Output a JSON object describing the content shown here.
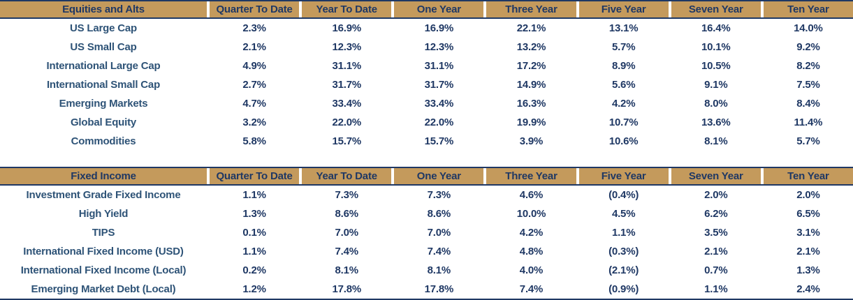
{
  "columns": [
    "Quarter To Date",
    "Year To Date",
    "One Year",
    "Three Year",
    "Five Year",
    "Seven Year",
    "Ten Year"
  ],
  "colors": {
    "header_background": "#c49a5c",
    "header_text": "#1f3864",
    "value_text": "#1f3864",
    "row_label_text": "#2e5377",
    "border": "#1f3864",
    "background": "#ffffff"
  },
  "tables": [
    {
      "title": "Equities and Alts",
      "rows": [
        {
          "label": "US Large Cap",
          "values": [
            "2.3%",
            "16.9%",
            "16.9%",
            "22.1%",
            "13.1%",
            "16.4%",
            "14.0%"
          ]
        },
        {
          "label": "US Small Cap",
          "values": [
            "2.1%",
            "12.3%",
            "12.3%",
            "13.2%",
            "5.7%",
            "10.1%",
            "9.2%"
          ]
        },
        {
          "label": "International Large Cap",
          "values": [
            "4.9%",
            "31.1%",
            "31.1%",
            "17.2%",
            "8.9%",
            "10.5%",
            "8.2%"
          ]
        },
        {
          "label": "International Small Cap",
          "values": [
            "2.7%",
            "31.7%",
            "31.7%",
            "14.9%",
            "5.6%",
            "9.1%",
            "7.5%"
          ]
        },
        {
          "label": "Emerging Markets",
          "values": [
            "4.7%",
            "33.4%",
            "33.4%",
            "16.3%",
            "4.2%",
            "8.0%",
            "8.4%"
          ]
        },
        {
          "label": "Global Equity",
          "values": [
            "3.2%",
            "22.0%",
            "22.0%",
            "19.9%",
            "10.7%",
            "13.6%",
            "11.4%"
          ]
        },
        {
          "label": "Commodities",
          "values": [
            "5.8%",
            "15.7%",
            "15.7%",
            "3.9%",
            "10.6%",
            "8.1%",
            "5.7%"
          ]
        }
      ]
    },
    {
      "title": "Fixed Income",
      "rows": [
        {
          "label": "Investment Grade Fixed Income",
          "values": [
            "1.1%",
            "7.3%",
            "7.3%",
            "4.6%",
            "(0.4%)",
            "2.0%",
            "2.0%"
          ]
        },
        {
          "label": "High Yield",
          "values": [
            "1.3%",
            "8.6%",
            "8.6%",
            "10.0%",
            "4.5%",
            "6.2%",
            "6.5%"
          ]
        },
        {
          "label": "TIPS",
          "values": [
            "0.1%",
            "7.0%",
            "7.0%",
            "4.2%",
            "1.1%",
            "3.5%",
            "3.1%"
          ]
        },
        {
          "label": "International Fixed Income (USD)",
          "values": [
            "1.1%",
            "7.4%",
            "7.4%",
            "4.8%",
            "(0.3%)",
            "2.1%",
            "2.1%"
          ]
        },
        {
          "label": "International Fixed Income (Local)",
          "values": [
            "0.2%",
            "8.1%",
            "8.1%",
            "4.0%",
            "(2.1%)",
            "0.7%",
            "1.3%"
          ]
        },
        {
          "label": "Emerging Market Debt (Local)",
          "values": [
            "1.2%",
            "17.8%",
            "17.8%",
            "7.4%",
            "(0.9%)",
            "1.1%",
            "2.4%"
          ]
        }
      ]
    }
  ]
}
